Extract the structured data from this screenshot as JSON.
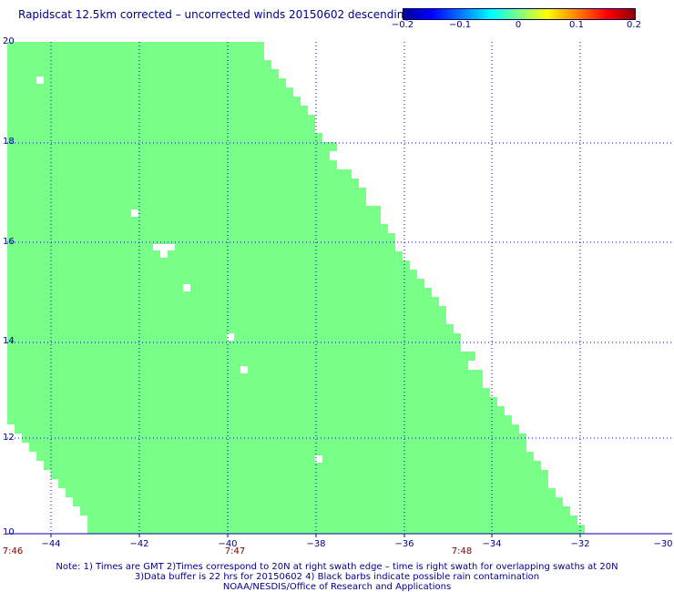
{
  "title": "Rapidscat 12.5km corrected – uncorrected winds 20150602 descending",
  "colorbar": {
    "ticks": [
      "−0.2",
      "−0.1",
      "0",
      "0.1",
      "0.2"
    ],
    "colors": [
      "#00009a",
      "#0000ff",
      "#00ffff",
      "#7fff7f",
      "#ffff00",
      "#ff8000",
      "#ff0000",
      "#8b0000"
    ]
  },
  "map": {
    "fill_color": "#77ff88",
    "grid_color": "#0000aa",
    "lat_labels": [
      "20",
      "18",
      "16",
      "14",
      "12",
      "10"
    ],
    "lon_labels": [
      "−44",
      "−42",
      "−40",
      "−38",
      "−36",
      "−34",
      "−32",
      "−30"
    ],
    "time_labels": [
      "7:46",
      "7:47",
      "7:48"
    ]
  },
  "notes": {
    "line1": "Note: 1) Times are GMT 2)Times correspond to 20N at right swath edge – time is right swath for overlapping swaths at 20N",
    "line2": "3)Data buffer is 22 hrs for 20150602 4) Black barbs indicate possible rain contamination",
    "line3": "NOAA/NESDIS/Office of Research and Applications"
  }
}
